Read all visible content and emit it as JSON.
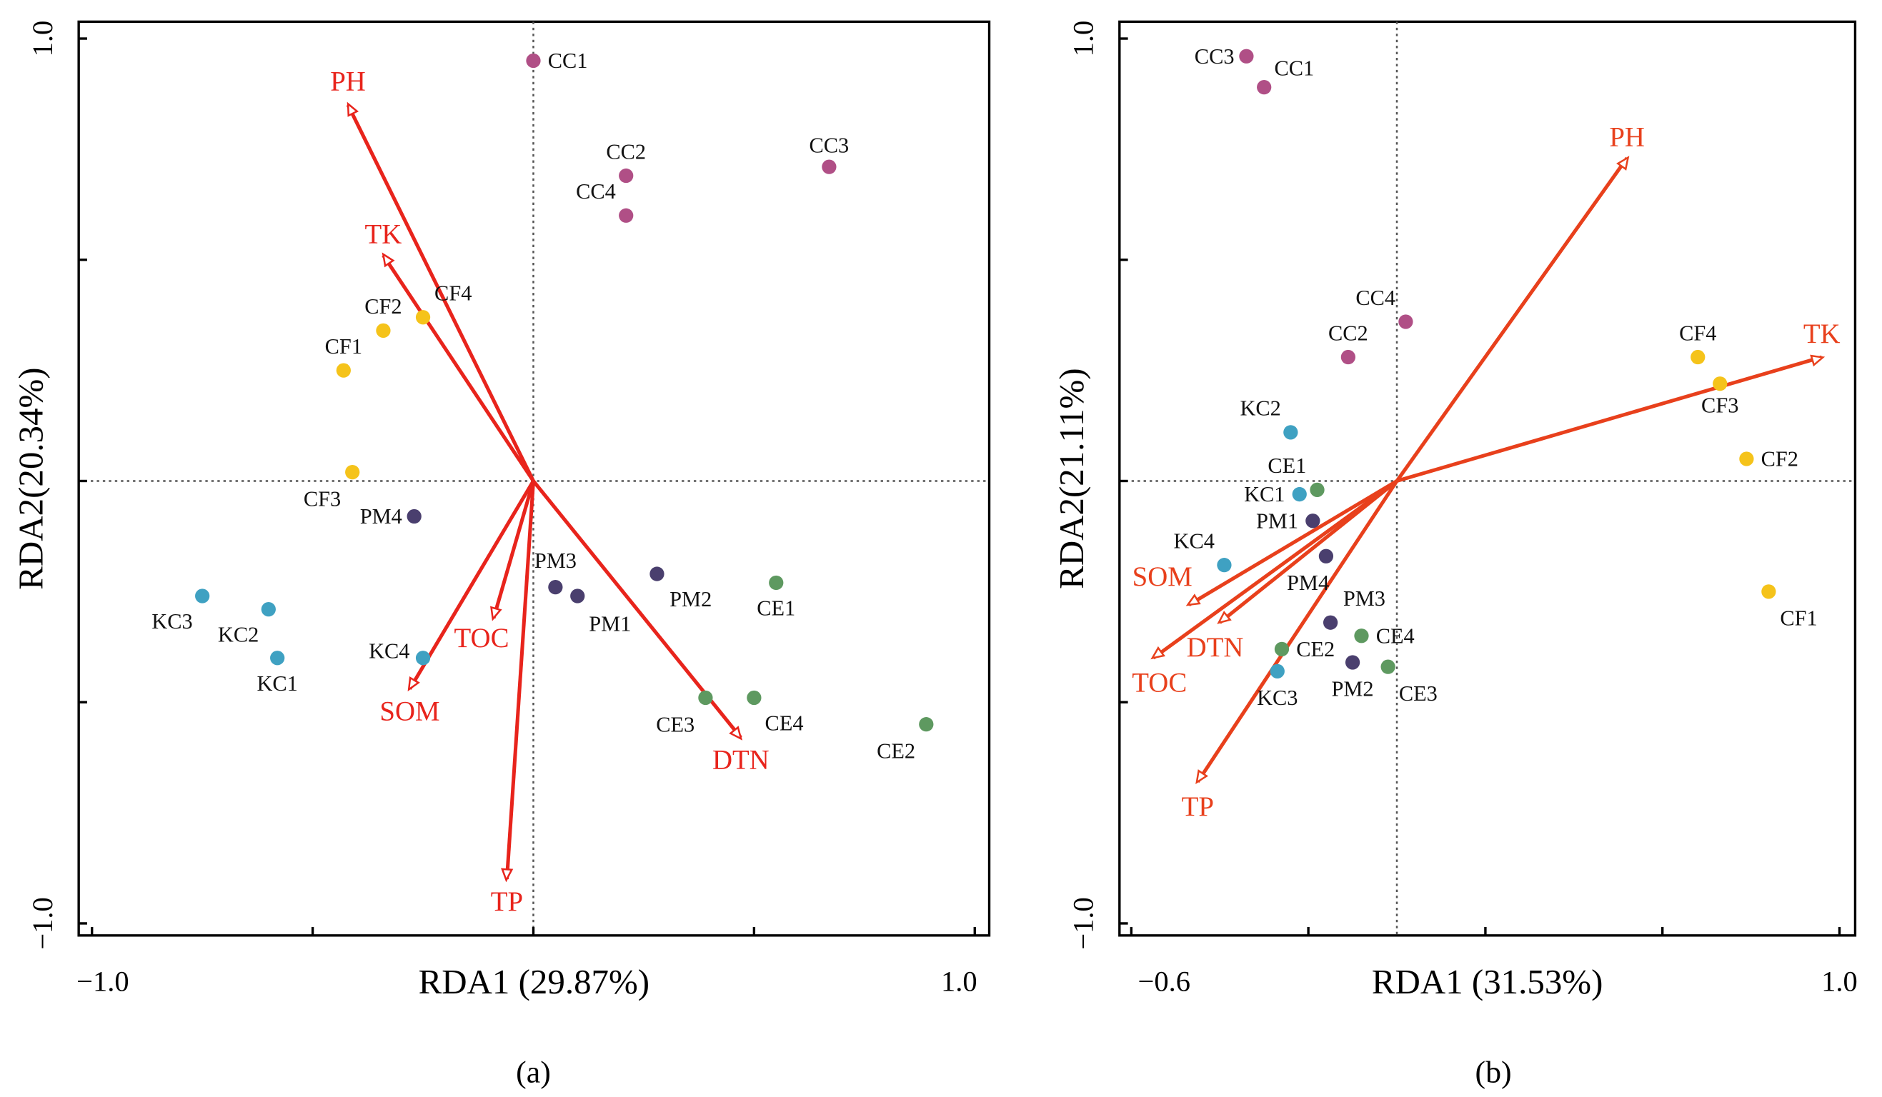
{
  "chart_data": [
    {
      "type": "scatter",
      "subtype": "rda-biplot",
      "caption": "(a)",
      "xlabel": "RDA1 (29.87%)",
      "ylabel": "RDA2(20.34%)",
      "xlim": [
        -1.0,
        1.0
      ],
      "ylim": [
        -1.0,
        1.0
      ],
      "xticks": [
        -1.0,
        -0.5,
        0,
        0.5,
        1.0
      ],
      "yticks": [
        -1.0,
        -0.5,
        0,
        0.5,
        1.0
      ],
      "xtick_labels": [
        "−1.0",
        "1.0"
      ],
      "ytick_labels": [
        "−1.0",
        "1.0"
      ],
      "group_colors": {
        "CC": "#b04f86",
        "CF": "#f5c31a",
        "KC": "#3fa1c2",
        "PM": "#4a3f6e",
        "CE": "#5e9960"
      },
      "arrow_color": "#e8241c",
      "samples": [
        {
          "name": "CC1",
          "x": 0.0,
          "y": 0.95
        },
        {
          "name": "CC2",
          "x": 0.21,
          "y": 0.69
        },
        {
          "name": "CC3",
          "x": 0.67,
          "y": 0.71
        },
        {
          "name": "CC4",
          "x": 0.21,
          "y": 0.6
        },
        {
          "name": "CF1",
          "x": -0.43,
          "y": 0.25
        },
        {
          "name": "CF2",
          "x": -0.34,
          "y": 0.34
        },
        {
          "name": "CF3",
          "x": -0.41,
          "y": 0.02
        },
        {
          "name": "CF4",
          "x": -0.25,
          "y": 0.37
        },
        {
          "name": "KC1",
          "x": -0.58,
          "y": -0.4
        },
        {
          "name": "KC2",
          "x": -0.6,
          "y": -0.29
        },
        {
          "name": "KC3",
          "x": -0.75,
          "y": -0.26
        },
        {
          "name": "KC4",
          "x": -0.25,
          "y": -0.4
        },
        {
          "name": "PM1",
          "x": 0.1,
          "y": -0.26
        },
        {
          "name": "PM2",
          "x": 0.28,
          "y": -0.21
        },
        {
          "name": "PM3",
          "x": 0.05,
          "y": -0.24
        },
        {
          "name": "PM4",
          "x": -0.27,
          "y": -0.08
        },
        {
          "name": "CE1",
          "x": 0.55,
          "y": -0.23
        },
        {
          "name": "CE2",
          "x": 0.89,
          "y": -0.55
        },
        {
          "name": "CE3",
          "x": 0.39,
          "y": -0.49
        },
        {
          "name": "CE4",
          "x": 0.5,
          "y": -0.49
        }
      ],
      "vectors": [
        {
          "name": "PH",
          "x": -0.42,
          "y": 0.85
        },
        {
          "name": "TK",
          "x": -0.34,
          "y": 0.51
        },
        {
          "name": "TOC",
          "x": -0.09,
          "y": -0.31
        },
        {
          "name": "SOM",
          "x": -0.28,
          "y": -0.47
        },
        {
          "name": "TP",
          "x": -0.06,
          "y": -0.9
        },
        {
          "name": "DTN",
          "x": 0.47,
          "y": -0.58
        }
      ]
    },
    {
      "type": "scatter",
      "subtype": "rda-biplot",
      "caption": "(b)",
      "xlabel": "RDA1 (31.53%)",
      "ylabel": "RDA2(21.11%)",
      "xlim": [
        -0.6,
        1.0
      ],
      "ylim": [
        -1.0,
        1.0
      ],
      "xticks": [
        -0.6,
        -0.2,
        0.2,
        0.6,
        1.0
      ],
      "yticks": [
        -1.0,
        -0.5,
        0,
        0.5,
        1.0
      ],
      "xtick_labels": [
        "−0.6",
        "1.0"
      ],
      "ytick_labels": [
        "−1.0",
        "1.0"
      ],
      "group_colors": {
        "CC": "#b04f86",
        "CF": "#f5c31a",
        "KC": "#3fa1c2",
        "PM": "#4a3f6e",
        "CE": "#5e9960"
      },
      "arrow_color": "#e8401c",
      "samples": [
        {
          "name": "CC1",
          "x": -0.3,
          "y": 0.89
        },
        {
          "name": "CC2",
          "x": -0.11,
          "y": 0.28
        },
        {
          "name": "CC3",
          "x": -0.34,
          "y": 0.96
        },
        {
          "name": "CC4",
          "x": 0.02,
          "y": 0.36
        },
        {
          "name": "CF1",
          "x": 0.84,
          "y": -0.25
        },
        {
          "name": "CF2",
          "x": 0.79,
          "y": 0.05
        },
        {
          "name": "CF3",
          "x": 0.73,
          "y": 0.22
        },
        {
          "name": "CF4",
          "x": 0.68,
          "y": 0.28
        },
        {
          "name": "KC1",
          "x": -0.22,
          "y": -0.03
        },
        {
          "name": "KC2",
          "x": -0.24,
          "y": 0.11
        },
        {
          "name": "KC3",
          "x": -0.27,
          "y": -0.43
        },
        {
          "name": "KC4",
          "x": -0.39,
          "y": -0.19
        },
        {
          "name": "PM1",
          "x": -0.19,
          "y": -0.09
        },
        {
          "name": "PM2",
          "x": -0.1,
          "y": -0.41
        },
        {
          "name": "PM3",
          "x": -0.15,
          "y": -0.32
        },
        {
          "name": "PM4",
          "x": -0.16,
          "y": -0.17
        },
        {
          "name": "CE1",
          "x": -0.18,
          "y": -0.02
        },
        {
          "name": "CE2",
          "x": -0.26,
          "y": -0.38
        },
        {
          "name": "CE3",
          "x": -0.02,
          "y": -0.42
        },
        {
          "name": "CE4",
          "x": -0.08,
          "y": -0.35
        }
      ],
      "vectors": [
        {
          "name": "PH",
          "x": 0.52,
          "y": 0.73
        },
        {
          "name": "TK",
          "x": 0.96,
          "y": 0.28
        },
        {
          "name": "SOM",
          "x": -0.47,
          "y": -0.28
        },
        {
          "name": "DTN",
          "x": -0.4,
          "y": -0.32
        },
        {
          "name": "TOC",
          "x": -0.55,
          "y": -0.4
        },
        {
          "name": "TP",
          "x": -0.45,
          "y": -0.68
        }
      ]
    }
  ]
}
